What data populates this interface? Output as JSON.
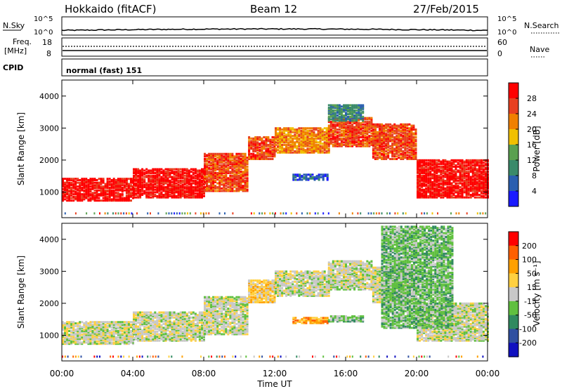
{
  "header": {
    "title_left": "Hokkaido (fitACF)",
    "title_center": "Beam 12",
    "title_right": "27/Feb/2015"
  },
  "strip_labels": {
    "nsky": "N.Sky",
    "nsky_top": "10^5",
    "nsky_bottom": "10^0",
    "nsky_right_top": "10^5",
    "nsky_right_bottom": "10^0",
    "nsearch": "N.Search",
    "freq_line1": "Freq.",
    "freq_line2": "[MHz]",
    "freq_top": "18",
    "freq_bottom": "8",
    "nave_top": "60",
    "nave_bottom": "0",
    "nave": "Nave",
    "cpid": "CPID",
    "cpid_value": "normal (fast) 151"
  },
  "colors": {
    "power": [
      "#1a1aff",
      "#2a5fb0",
      "#3a8a6a",
      "#5aa050",
      "#f0c000",
      "#f08000",
      "#e84020",
      "#ff0000"
    ],
    "velocity": [
      "#ff0000",
      "#ff6000",
      "#ffa000",
      "#ffd040",
      "#c8c8c8",
      "#60c040",
      "#308a60",
      "#3050a0",
      "#1010c0"
    ]
  },
  "chart_data": [
    {
      "type": "heatmap",
      "name": "power",
      "ylabel": "Slant Range [km]",
      "ylim": [
        200,
        4500
      ],
      "xlim": [
        0,
        24
      ],
      "yticks": [
        "1000",
        "2000",
        "3000",
        "4000"
      ],
      "colorbar_label": "Power [dB]",
      "colorbar_ticks": [
        "4",
        "8",
        "12",
        "16",
        "20",
        "24",
        "28"
      ],
      "range_bands": [
        {
          "t0": 0,
          "t1": 4,
          "r0": 700,
          "r1": 1400,
          "level": 7
        },
        {
          "t0": 4,
          "t1": 8,
          "r0": 800,
          "r1": 1700,
          "level": 7
        },
        {
          "t0": 8,
          "t1": 10.5,
          "r0": 1000,
          "r1": 2200,
          "level": 6
        },
        {
          "t0": 10.5,
          "t1": 12,
          "r0": 2000,
          "r1": 2700,
          "level": 6
        },
        {
          "t0": 12,
          "t1": 15,
          "r0": 2200,
          "r1": 3000,
          "level": 5
        },
        {
          "t0": 15,
          "t1": 17.5,
          "r0": 2400,
          "r1": 3300,
          "level": 6
        },
        {
          "t0": 17.5,
          "t1": 20,
          "r0": 2000,
          "r1": 3100,
          "level": 6
        },
        {
          "t0": 20,
          "t1": 24,
          "r0": 800,
          "r1": 2000,
          "level": 7
        },
        {
          "t0": 13,
          "t1": 15,
          "r0": 1350,
          "r1": 1550,
          "level": 1
        },
        {
          "t0": 15,
          "t1": 17,
          "r0": 3200,
          "r1": 3700,
          "level": 2
        }
      ]
    },
    {
      "type": "heatmap",
      "name": "velocity",
      "ylabel": "Slant Range [km]",
      "ylim": [
        200,
        4500
      ],
      "xlim": [
        0,
        24
      ],
      "yticks": [
        "1000",
        "2000",
        "3000",
        "4000"
      ],
      "colorbar_label": "Velocity [m s⁻¹]",
      "colorbar_ticks": [
        "200",
        "100",
        "50",
        "15",
        "-15",
        "-50",
        "-100",
        "-200"
      ],
      "range_bands": [
        {
          "t0": 0,
          "t1": 4,
          "r0": 700,
          "r1": 1400,
          "level": 4
        },
        {
          "t0": 4,
          "t1": 8,
          "r0": 800,
          "r1": 1700,
          "level": 4
        },
        {
          "t0": 8,
          "t1": 10.5,
          "r0": 1000,
          "r1": 2200,
          "level": 4
        },
        {
          "t0": 10.5,
          "t1": 12,
          "r0": 2000,
          "r1": 2700,
          "level": 3
        },
        {
          "t0": 12,
          "t1": 15,
          "r0": 2200,
          "r1": 3000,
          "level": 4
        },
        {
          "t0": 15,
          "t1": 17.5,
          "r0": 2400,
          "r1": 3300,
          "level": 4
        },
        {
          "t0": 17.5,
          "t1": 20,
          "r0": 2000,
          "r1": 3100,
          "level": 4
        },
        {
          "t0": 20,
          "t1": 24,
          "r0": 800,
          "r1": 2000,
          "level": 4
        },
        {
          "t0": 13,
          "t1": 15,
          "r0": 1350,
          "r1": 1550,
          "level": 2
        },
        {
          "t0": 15,
          "t1": 17,
          "r0": 1400,
          "r1": 1600,
          "level": 5
        },
        {
          "t0": 18,
          "t1": 22,
          "r0": 1200,
          "r1": 4400,
          "level": 5
        }
      ]
    }
  ],
  "xaxis": {
    "label": "Time UT",
    "ticks": [
      "00:00",
      "04:00",
      "08:00",
      "12:00",
      "16:00",
      "20:00",
      "00:00"
    ]
  }
}
